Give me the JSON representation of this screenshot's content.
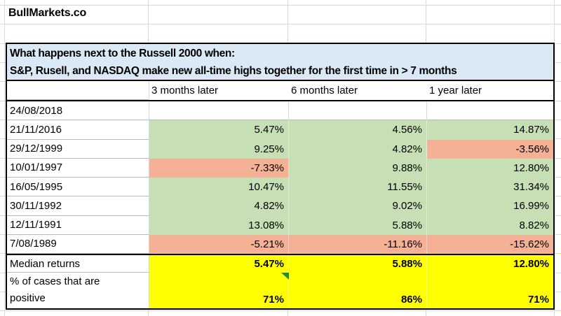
{
  "brand": "BullMarkets.co",
  "header": {
    "line1": "What happens next to the Russell 2000 when:",
    "line2": "S&P, Rusell, and NASDAQ make new all-time highs together for the first time in > 7 months"
  },
  "columns": [
    "3 months later",
    "6 months later",
    "1 year later"
  ],
  "rows": [
    {
      "date": "24/08/2018",
      "cells": [
        {
          "v": "",
          "f": "blank"
        },
        {
          "v": "",
          "f": "blank"
        },
        {
          "v": "",
          "f": "blank"
        }
      ]
    },
    {
      "date": "21/11/2016",
      "cells": [
        {
          "v": "5.47%",
          "f": "pos"
        },
        {
          "v": "4.56%",
          "f": "pos"
        },
        {
          "v": "14.87%",
          "f": "pos"
        }
      ]
    },
    {
      "date": "29/12/1999",
      "cells": [
        {
          "v": "9.25%",
          "f": "pos"
        },
        {
          "v": "4.82%",
          "f": "pos"
        },
        {
          "v": "-3.56%",
          "f": "neg"
        }
      ]
    },
    {
      "date": "10/01/1997",
      "cells": [
        {
          "v": "-7.33%",
          "f": "neg"
        },
        {
          "v": "9.88%",
          "f": "pos"
        },
        {
          "v": "12.80%",
          "f": "pos"
        }
      ]
    },
    {
      "date": "16/05/1995",
      "cells": [
        {
          "v": "10.47%",
          "f": "pos"
        },
        {
          "v": "11.55%",
          "f": "pos"
        },
        {
          "v": "31.34%",
          "f": "pos"
        }
      ]
    },
    {
      "date": "30/11/1992",
      "cells": [
        {
          "v": "4.82%",
          "f": "pos"
        },
        {
          "v": "9.02%",
          "f": "pos"
        },
        {
          "v": "16.99%",
          "f": "pos"
        }
      ]
    },
    {
      "date": "12/11/1991",
      "cells": [
        {
          "v": "13.08%",
          "f": "pos"
        },
        {
          "v": "5.88%",
          "f": "pos"
        },
        {
          "v": "8.82%",
          "f": "pos"
        }
      ]
    },
    {
      "date": "7/08/1989",
      "cells": [
        {
          "v": "-5.21%",
          "f": "neg"
        },
        {
          "v": "-11.16%",
          "f": "neg"
        },
        {
          "v": "-15.62%",
          "f": "neg"
        }
      ]
    }
  ],
  "summary": {
    "median": {
      "label": "Median returns",
      "values": [
        "5.47%",
        "5.88%",
        "12.80%"
      ]
    },
    "positive": {
      "label_line1": "% of cases that are",
      "label_line2": "positive",
      "values": [
        "71%",
        "86%",
        "71%"
      ]
    }
  },
  "colors": {
    "positive_fill": "#C6DFB4",
    "negative_fill": "#F5B195",
    "summary_fill": "#FFFF00",
    "header_fill": "#DBE9F6",
    "gridline": "#D8D8D8",
    "gridline_dark": "#B9B9B9",
    "error_indicator_green": "#1E8C2F"
  }
}
